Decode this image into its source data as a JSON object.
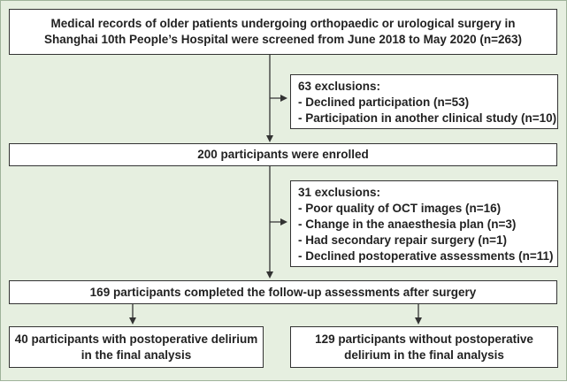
{
  "flowchart": {
    "screening": {
      "lines": [
        "Medical records of older patients undergoing orthopaedic or urological surgery in",
        "Shanghai 10th People’s Hospital were screened  from June 2018 to May 2020 (n=263)"
      ]
    },
    "exclusions1": {
      "title": "63 exclusions:",
      "items": [
        "- Declined participation (n=53)",
        "- Participation in another clinical study (n=10)"
      ]
    },
    "enrolled": {
      "text": "200 participants were enrolled"
    },
    "exclusions2": {
      "title": "31 exclusions:",
      "items": [
        "- Poor quality of OCT images (n=16)",
        "- Change in the anaesthesia plan (n=3)",
        "- Had secondary repair surgery (n=1)",
        "- Declined postoperative assessments (n=11)"
      ]
    },
    "completed": {
      "text": "169 participants completed the follow-up assessments after surgery"
    },
    "delirium": {
      "lines": [
        "40 participants with postoperative delirium",
        "in the final analysis"
      ]
    },
    "no_delirium": {
      "lines": [
        "129 participants without postoperative",
        "delirium in the final analysis"
      ]
    }
  },
  "colors": {
    "background": "#e6efe0",
    "box_fill": "#ffffff",
    "box_border": "#333333",
    "arrow": "#333333"
  }
}
